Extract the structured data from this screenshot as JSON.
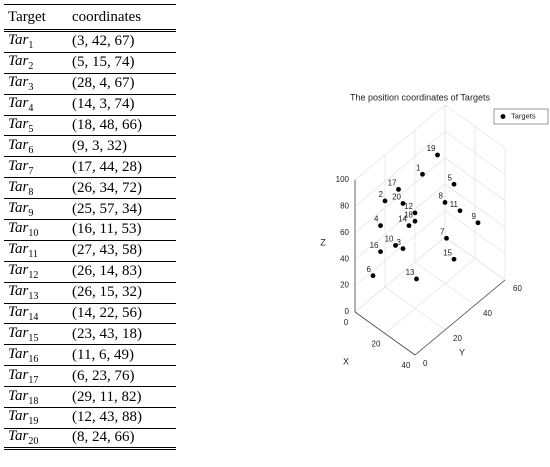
{
  "table": {
    "header": [
      "Target",
      "coordinates"
    ],
    "rows": [
      [
        "Tar",
        "1",
        "(3, 42, 67)"
      ],
      [
        "Tar",
        "2",
        "(5, 15, 74)"
      ],
      [
        "Tar",
        "3",
        "(28, 4, 67)"
      ],
      [
        "Tar",
        "4",
        "(14, 3, 74)"
      ],
      [
        "Tar",
        "5",
        "(18, 48, 66)"
      ],
      [
        "Tar",
        "6",
        "(9, 3, 32)"
      ],
      [
        "Tar",
        "7",
        "(17, 44, 28)"
      ],
      [
        "Tar",
        "8",
        "(26, 34, 72)"
      ],
      [
        "Tar",
        "9",
        "(25, 57, 34)"
      ],
      [
        "Tar",
        "10",
        "(16, 11, 53)"
      ],
      [
        "Tar",
        "11",
        "(27, 43, 58)"
      ],
      [
        "Tar",
        "12",
        "(26, 14, 83)"
      ],
      [
        "Tar",
        "13",
        "(26, 15, 32)"
      ],
      [
        "Tar",
        "14",
        "(14, 22, 56)"
      ],
      [
        "Tar",
        "15",
        "(23, 43, 18)"
      ],
      [
        "Tar",
        "16",
        "(11, 6, 49)"
      ],
      [
        "Tar",
        "17",
        "(6, 23, 76)"
      ],
      [
        "Tar",
        "18",
        "(29, 11, 82)"
      ],
      [
        "Tar",
        "19",
        "(12, 43, 88)"
      ],
      [
        "Tar",
        "20",
        "(8, 24, 66)"
      ]
    ]
  },
  "chart_data": {
    "type": "scatter3d",
    "title": "The position coordinates of Targets",
    "xlabel": "X",
    "ylabel": "Y",
    "zlabel": "Z",
    "xlim": [
      0,
      40
    ],
    "ylim": [
      0,
      60
    ],
    "zlim": [
      0,
      100
    ],
    "xticks": [
      0,
      20,
      40
    ],
    "yticks": [
      0,
      20,
      40,
      60
    ],
    "zticks": [
      0,
      20,
      40,
      60,
      80,
      100
    ],
    "grid": true,
    "legend": "northeast",
    "point_labels": [
      "1",
      "2",
      "3",
      "4",
      "5",
      "6",
      "7",
      "8",
      "9",
      "10",
      "11",
      "12",
      "13",
      "14",
      "15",
      "16",
      "17",
      "18",
      "19",
      "20"
    ],
    "series": [
      {
        "name": "Targets",
        "color": "#000000",
        "x": [
          3,
          5,
          28,
          14,
          18,
          9,
          17,
          26,
          25,
          16,
          27,
          26,
          26,
          14,
          23,
          11,
          6,
          29,
          12,
          8
        ],
        "y": [
          42,
          15,
          4,
          3,
          48,
          3,
          44,
          34,
          57,
          11,
          43,
          14,
          15,
          22,
          43,
          6,
          23,
          11,
          43,
          24
        ],
        "z": [
          67,
          74,
          67,
          74,
          66,
          32,
          28,
          72,
          34,
          53,
          58,
          83,
          32,
          56,
          18,
          49,
          76,
          82,
          88,
          66
        ]
      }
    ]
  }
}
